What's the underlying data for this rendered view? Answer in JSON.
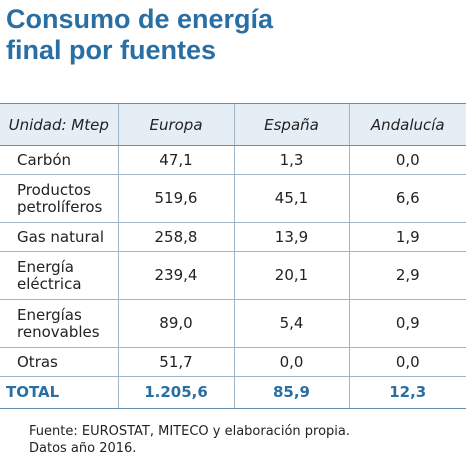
{
  "title": {
    "line1": "Consumo de energía",
    "line2": "final por fuentes"
  },
  "table": {
    "headers": [
      "Unidad: Mtep",
      "Europa",
      "España",
      "Andalucía"
    ],
    "rows": [
      {
        "label": "Carbón",
        "values": [
          "47,1",
          "1,3",
          "0,0"
        ]
      },
      {
        "label": "Productos petrolíferos",
        "label_line1": "Productos",
        "label_line2": "petrolíferos",
        "values": [
          "519,6",
          "45,1",
          "6,6"
        ]
      },
      {
        "label": "Gas natural",
        "values": [
          "258,8",
          "13,9",
          "1,9"
        ]
      },
      {
        "label": "Energía eléctrica",
        "label_line1": "Energía",
        "label_line2": "eléctrica",
        "values": [
          "239,4",
          "20,1",
          "2,9"
        ]
      },
      {
        "label": "Energías renovables",
        "label_line1": "Energías",
        "label_line2": "renovables",
        "values": [
          "89,0",
          "5,4",
          "0,9"
        ]
      },
      {
        "label": "Otras",
        "values": [
          "51,7",
          "0,0",
          "0,0"
        ]
      }
    ],
    "total": {
      "label": "TOTAL",
      "values": [
        "1.205,6",
        "85,9",
        "12,3"
      ]
    }
  },
  "footnote": {
    "line1": "Fuente: EUROSTAT, MITECO y elaboración propia.",
    "line2": "Datos año 2016."
  },
  "colors": {
    "accent": "#2a6fa3",
    "header_bg": "#e6eef5",
    "rule": "#9fb6c9"
  }
}
